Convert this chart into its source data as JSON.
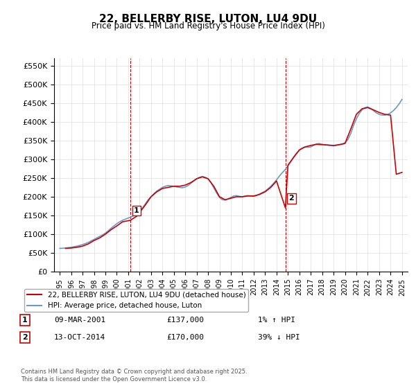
{
  "title": "22, BELLERBY RISE, LUTON, LU4 9DU",
  "subtitle": "Price paid vs. HM Land Registry's House Price Index (HPI)",
  "ylabel_ticks": [
    "£0",
    "£50K",
    "£100K",
    "£150K",
    "£200K",
    "£250K",
    "£300K",
    "£350K",
    "£400K",
    "£450K",
    "£500K",
    "£550K"
  ],
  "ytick_values": [
    0,
    50000,
    100000,
    150000,
    200000,
    250000,
    300000,
    350000,
    400000,
    450000,
    500000,
    550000
  ],
  "ylim": [
    0,
    570000
  ],
  "xlim_start": 1994.5,
  "xlim_end": 2025.5,
  "xticks": [
    1995,
    1996,
    1997,
    1998,
    1999,
    2000,
    2001,
    2002,
    2003,
    2004,
    2005,
    2006,
    2007,
    2008,
    2009,
    2010,
    2011,
    2012,
    2013,
    2014,
    2015,
    2016,
    2017,
    2018,
    2019,
    2020,
    2021,
    2022,
    2023,
    2024,
    2025
  ],
  "sale1_x": 2001.18,
  "sale1_y": 137000,
  "sale1_label": "1",
  "sale1_date": "09-MAR-2001",
  "sale1_price": "£137,000",
  "sale1_hpi": "1% ↑ HPI",
  "sale2_x": 2014.78,
  "sale2_y": 170000,
  "sale2_label": "2",
  "sale2_date": "13-OCT-2014",
  "sale2_price": "£170,000",
  "sale2_hpi": "39% ↓ HPI",
  "vline_color": "#cc0000",
  "vline_style": "--",
  "hpi_color": "#6699cc",
  "price_color": "#cc0000",
  "legend_label_price": "22, BELLERBY RISE, LUTON, LU4 9DU (detached house)",
  "legend_label_hpi": "HPI: Average price, detached house, Luton",
  "footer": "Contains HM Land Registry data © Crown copyright and database right 2025.\nThis data is licensed under the Open Government Licence v3.0.",
  "hpi_data_x": [
    1995.0,
    1995.25,
    1995.5,
    1995.75,
    1996.0,
    1996.25,
    1996.5,
    1996.75,
    1997.0,
    1997.25,
    1997.5,
    1997.75,
    1998.0,
    1998.25,
    1998.5,
    1998.75,
    1999.0,
    1999.25,
    1999.5,
    1999.75,
    2000.0,
    2000.25,
    2000.5,
    2000.75,
    2001.0,
    2001.25,
    2001.5,
    2001.75,
    2002.0,
    2002.25,
    2002.5,
    2002.75,
    2003.0,
    2003.25,
    2003.5,
    2003.75,
    2004.0,
    2004.25,
    2004.5,
    2004.75,
    2005.0,
    2005.25,
    2005.5,
    2005.75,
    2006.0,
    2006.25,
    2006.5,
    2006.75,
    2007.0,
    2007.25,
    2007.5,
    2007.75,
    2008.0,
    2008.25,
    2008.5,
    2008.75,
    2009.0,
    2009.25,
    2009.5,
    2009.75,
    2010.0,
    2010.25,
    2010.5,
    2010.75,
    2011.0,
    2011.25,
    2011.5,
    2011.75,
    2012.0,
    2012.25,
    2012.5,
    2012.75,
    2013.0,
    2013.25,
    2013.5,
    2013.75,
    2014.0,
    2014.25,
    2014.5,
    2014.75,
    2015.0,
    2015.25,
    2015.5,
    2015.75,
    2016.0,
    2016.25,
    2016.5,
    2016.75,
    2017.0,
    2017.25,
    2017.5,
    2017.75,
    2018.0,
    2018.25,
    2018.5,
    2018.75,
    2019.0,
    2019.25,
    2019.5,
    2019.75,
    2020.0,
    2020.25,
    2020.5,
    2020.75,
    2021.0,
    2021.25,
    2021.5,
    2021.75,
    2022.0,
    2022.25,
    2022.5,
    2022.75,
    2023.0,
    2023.25,
    2023.5,
    2023.75,
    2024.0,
    2024.25,
    2024.5,
    2024.75,
    2025.0
  ],
  "hpi_data_y": [
    62000,
    62500,
    63000,
    64000,
    65000,
    66500,
    68000,
    70000,
    72000,
    75000,
    78000,
    82000,
    86000,
    90000,
    94000,
    98000,
    103000,
    109000,
    116000,
    122000,
    128000,
    133000,
    137000,
    140000,
    143000,
    146000,
    150000,
    154000,
    160000,
    170000,
    181000,
    192000,
    200000,
    208000,
    215000,
    220000,
    225000,
    228000,
    230000,
    229000,
    228000,
    226000,
    225000,
    224000,
    226000,
    230000,
    236000,
    242000,
    248000,
    252000,
    254000,
    252000,
    248000,
    238000,
    224000,
    210000,
    198000,
    192000,
    191000,
    194000,
    198000,
    202000,
    203000,
    201000,
    200000,
    202000,
    203000,
    202000,
    201000,
    203000,
    207000,
    211000,
    215000,
    221000,
    228000,
    236000,
    245000,
    255000,
    264000,
    272000,
    282000,
    294000,
    306000,
    316000,
    324000,
    330000,
    333000,
    332000,
    333000,
    337000,
    341000,
    342000,
    340000,
    339000,
    338000,
    337000,
    336000,
    337000,
    339000,
    341000,
    344000,
    352000,
    368000,
    390000,
    408000,
    422000,
    432000,
    438000,
    440000,
    436000,
    430000,
    424000,
    420000,
    418000,
    418000,
    420000,
    424000,
    430000,
    438000,
    448000,
    460000
  ],
  "price_data_x": [
    1995.5,
    1996.0,
    1996.5,
    1997.0,
    1997.5,
    1998.0,
    1998.5,
    1999.0,
    1999.5,
    2000.0,
    2000.5,
    2001.18,
    2001.75,
    2002.5,
    2003.0,
    2003.5,
    2004.0,
    2005.0,
    2005.5,
    2006.0,
    2006.5,
    2007.0,
    2007.5,
    2008.0,
    2008.5,
    2009.0,
    2009.5,
    2010.0,
    2010.5,
    2011.0,
    2011.5,
    2012.0,
    2012.5,
    2013.0,
    2013.5,
    2014.0,
    2014.78,
    2015.0,
    2015.5,
    2016.0,
    2016.5,
    2017.0,
    2017.5,
    2018.0,
    2018.5,
    2019.0,
    2019.5,
    2020.0,
    2020.5,
    2021.0,
    2021.5,
    2022.0,
    2022.5,
    2023.0,
    2023.5,
    2024.0,
    2024.5,
    2025.0
  ],
  "price_data_y": [
    62000,
    63000,
    65000,
    68000,
    74000,
    83000,
    90000,
    100000,
    112000,
    122000,
    133000,
    137000,
    148000,
    178000,
    200000,
    213000,
    222000,
    228000,
    228000,
    231000,
    238000,
    248000,
    253000,
    248000,
    228000,
    200000,
    192000,
    196000,
    200000,
    200000,
    202000,
    202000,
    206000,
    213000,
    225000,
    242000,
    170000,
    284000,
    305000,
    325000,
    333000,
    337000,
    340000,
    339000,
    338000,
    337000,
    339000,
    342000,
    380000,
    420000,
    435000,
    438000,
    432000,
    425000,
    420000,
    418000,
    260000,
    265000
  ]
}
